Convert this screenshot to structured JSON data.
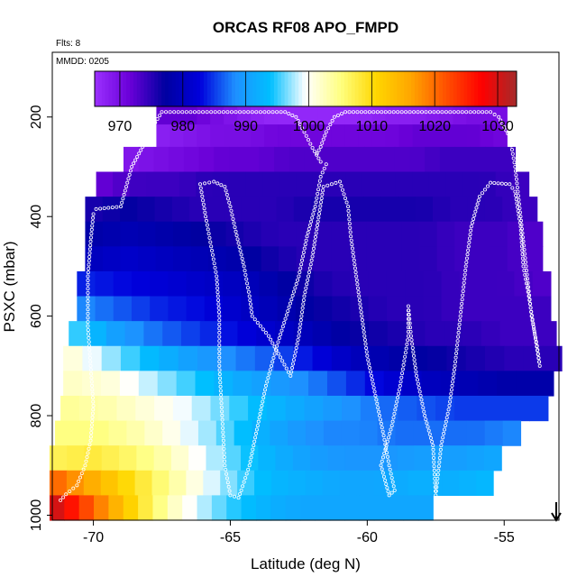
{
  "chart_data": {
    "type": "heatmap",
    "title": "ORCAS RF08 APO_FMPD",
    "flights_note": "Flts: 8",
    "date_note": "MMDD: 0205",
    "xlabel": "Latitude (deg N)",
    "ylabel": "PSXC (mbar)",
    "xlim": [
      -71.5,
      -53
    ],
    "ylim": [
      1010,
      70
    ],
    "x_ticks": [
      -70,
      -65,
      -60,
      -55
    ],
    "y_ticks": [
      200,
      400,
      600,
      800,
      1000
    ],
    "colorbar": {
      "min": 966,
      "max": 1033,
      "ticks": [
        970,
        980,
        990,
        1000,
        1010,
        1020,
        1030
      ],
      "colors": [
        "#9b30ff",
        "#6a00d8",
        "#0000a0",
        "#0000dc",
        "#1e90ff",
        "#00bfff",
        "#ffffff",
        "#ffff80",
        "#ffd700",
        "#ffa500",
        "#ff5000",
        "#ff0000",
        "#a52a2a"
      ]
    },
    "bands": [
      {
        "p": 190,
        "lat": [
          -67.7,
          -54.9
        ],
        "v": [
          972,
          972,
          970,
          968,
          967,
          967,
          967,
          967,
          968,
          968,
          969,
          970,
          970
        ]
      },
      {
        "p": 240,
        "lat": [
          -67.7,
          -54.9
        ],
        "v": [
          968,
          969,
          970,
          970,
          971,
          971,
          971,
          971,
          971,
          972,
          972,
          972,
          971
        ]
      },
      {
        "p": 285,
        "lat": [
          -68.9,
          -54.6
        ],
        "v": [
          969,
          970,
          971,
          972,
          972,
          973,
          973,
          973,
          973,
          973,
          974,
          974,
          974
        ]
      },
      {
        "p": 335,
        "lat": [
          -69.9,
          -54.1
        ],
        "v": [
          972,
          974,
          974,
          975,
          975,
          975,
          975,
          975,
          975,
          975,
          975,
          975,
          974
        ]
      },
      {
        "p": 385,
        "lat": [
          -70.3,
          -53.8
        ],
        "v": [
          976,
          977,
          976,
          975,
          975,
          975,
          976,
          976,
          976,
          976,
          975,
          975,
          974
        ]
      },
      {
        "p": 435,
        "lat": [
          -70.3,
          -53.6
        ],
        "v": [
          978,
          979,
          978,
          977,
          976,
          975,
          975,
          975,
          975,
          975,
          974,
          974,
          973
        ]
      },
      {
        "p": 485,
        "lat": [
          -70.3,
          -53.6
        ],
        "v": [
          980,
          981,
          980,
          979,
          978,
          976,
          975,
          975,
          975,
          975,
          974,
          974,
          973
        ]
      },
      {
        "p": 535,
        "lat": [
          -70.6,
          -53.3
        ],
        "v": [
          984,
          983,
          982,
          981,
          980,
          978,
          976,
          975,
          975,
          975,
          974,
          974,
          973
        ]
      },
      {
        "p": 585,
        "lat": [
          -70.6,
          -53.3
        ],
        "v": [
          988,
          986,
          984,
          983,
          981,
          979,
          977,
          976,
          975,
          975,
          974,
          974,
          974
        ]
      },
      {
        "p": 635,
        "lat": [
          -70.9,
          -53.1
        ],
        "v": [
          995,
          990,
          987,
          985,
          983,
          981,
          979,
          977,
          976,
          975,
          975,
          974,
          974
        ]
      },
      {
        "p": 685,
        "lat": [
          -71.1,
          -52.9
        ],
        "v": [
          1001,
          997,
          993,
          990,
          988,
          986,
          983,
          980,
          978,
          977,
          976,
          975,
          975
        ]
      },
      {
        "p": 735,
        "lat": [
          -71.1,
          -53.2
        ],
        "v": [
          1002,
          1001,
          998,
          995,
          992,
          990,
          988,
          985,
          982,
          980,
          979,
          978,
          978
        ]
      },
      {
        "p": 785,
        "lat": [
          -71.2,
          -53.4
        ],
        "v": [
          1004,
          1003,
          1001,
          999,
          996,
          993,
          991,
          989,
          987,
          986,
          985,
          985,
          985
        ]
      },
      {
        "p": 835,
        "lat": [
          -71.4,
          -54.4
        ],
        "v": [
          1005,
          1005,
          1003,
          1000,
          997,
          993,
          990,
          988,
          988,
          987,
          987,
          987,
          988
        ]
      },
      {
        "p": 885,
        "lat": [
          -71.6,
          -55.1
        ],
        "v": [
          1007,
          1008,
          1006,
          1003,
          999,
          995,
          992,
          990,
          989,
          989,
          990,
          990,
          991
        ]
      },
      {
        "p": 935,
        "lat": [
          -71.6,
          -55.4
        ],
        "v": [
          1020,
          1015,
          1010,
          1005,
          1000,
          996,
          993,
          992,
          991,
          991,
          992,
          992,
          993
        ]
      },
      {
        "p": 985,
        "lat": [
          -71.6,
          -57.6
        ],
        "v": [
          1030,
          1022,
          1014,
          1007,
          1001,
          997,
          994,
          992,
          991,
          991,
          991,
          991,
          991
        ]
      }
    ],
    "flight_track": [
      [
        -71.2,
        970
      ],
      [
        -71.0,
        958
      ],
      [
        -70.6,
        940
      ],
      [
        -70.3,
        900
      ],
      [
        -70.1,
        850
      ],
      [
        -70.0,
        780
      ],
      [
        -70.1,
        700
      ],
      [
        -70.2,
        620
      ],
      [
        -70.2,
        520
      ],
      [
        -70.1,
        450
      ],
      [
        -70.0,
        395
      ],
      [
        -69.9,
        385
      ],
      [
        -69.0,
        380
      ],
      [
        -68.8,
        340
      ],
      [
        -68.6,
        300
      ],
      [
        -68.2,
        260
      ],
      [
        -67.9,
        225
      ],
      [
        -67.5,
        190
      ],
      [
        -63.0,
        190
      ],
      [
        -62.6,
        200
      ],
      [
        -62.3,
        230
      ],
      [
        -62.0,
        262
      ],
      [
        -61.7,
        290
      ],
      [
        -61.5,
        295
      ],
      [
        -61.7,
        320
      ],
      [
        -61.9,
        380
      ],
      [
        -62.2,
        440
      ],
      [
        -62.5,
        520
      ],
      [
        -62.9,
        590
      ],
      [
        -63.3,
        660
      ],
      [
        -63.7,
        740
      ],
      [
        -64.0,
        820
      ],
      [
        -64.3,
        900
      ],
      [
        -64.6,
        950
      ],
      [
        -64.7,
        965
      ],
      [
        -65.0,
        960
      ],
      [
        -65.2,
        900
      ],
      [
        -65.3,
        800
      ],
      [
        -65.4,
        700
      ],
      [
        -65.4,
        600
      ],
      [
        -65.5,
        520
      ],
      [
        -65.7,
        460
      ],
      [
        -65.9,
        400
      ],
      [
        -66.1,
        335
      ],
      [
        -65.6,
        330
      ],
      [
        -65.2,
        340
      ],
      [
        -65.0,
        380
      ],
      [
        -64.8,
        430
      ],
      [
        -64.5,
        500
      ],
      [
        -64.3,
        560
      ],
      [
        -64.2,
        600
      ],
      [
        -63.6,
        640
      ],
      [
        -63.1,
        690
      ],
      [
        -62.8,
        720
      ],
      [
        -62.5,
        640
      ],
      [
        -62.3,
        560
      ],
      [
        -62.0,
        480
      ],
      [
        -61.8,
        410
      ],
      [
        -61.6,
        340
      ],
      [
        -61.0,
        330
      ],
      [
        -60.7,
        380
      ],
      [
        -60.6,
        440
      ],
      [
        -60.4,
        520
      ],
      [
        -60.2,
        600
      ],
      [
        -60.0,
        680
      ],
      [
        -59.7,
        760
      ],
      [
        -59.4,
        840
      ],
      [
        -59.2,
        900
      ],
      [
        -59.0,
        950
      ],
      [
        -59.2,
        960
      ],
      [
        -59.5,
        900
      ],
      [
        -59.1,
        820
      ],
      [
        -58.8,
        740
      ],
      [
        -58.5,
        640
      ],
      [
        -58.5,
        580
      ],
      [
        -58.4,
        640
      ],
      [
        -58.2,
        720
      ],
      [
        -57.9,
        800
      ],
      [
        -57.6,
        860
      ],
      [
        -57.5,
        960
      ],
      [
        -57.3,
        860
      ],
      [
        -57.0,
        780
      ],
      [
        -56.8,
        700
      ],
      [
        -56.6,
        600
      ],
      [
        -56.4,
        500
      ],
      [
        -56.2,
        420
      ],
      [
        -55.9,
        360
      ],
      [
        -55.5,
        332
      ],
      [
        -54.8,
        335
      ],
      [
        -54.6,
        350
      ],
      [
        -54.4,
        420
      ],
      [
        -54.3,
        500
      ],
      [
        -54.1,
        560
      ],
      [
        -53.9,
        630
      ],
      [
        -53.7,
        700
      ],
      [
        -53.8,
        660
      ],
      [
        -54.0,
        600
      ],
      [
        -54.2,
        500
      ],
      [
        -54.4,
        400
      ],
      [
        -54.6,
        300
      ],
      [
        -54.8,
        240
      ],
      [
        -55.2,
        200
      ],
      [
        -55.5,
        190
      ],
      [
        -60.8,
        190
      ],
      [
        -61.2,
        200
      ],
      [
        -61.5,
        230
      ],
      [
        -61.7,
        260
      ],
      [
        -61.9,
        280
      ]
    ],
    "arrow": {
      "lat": -53.1,
      "p": 1000
    }
  }
}
